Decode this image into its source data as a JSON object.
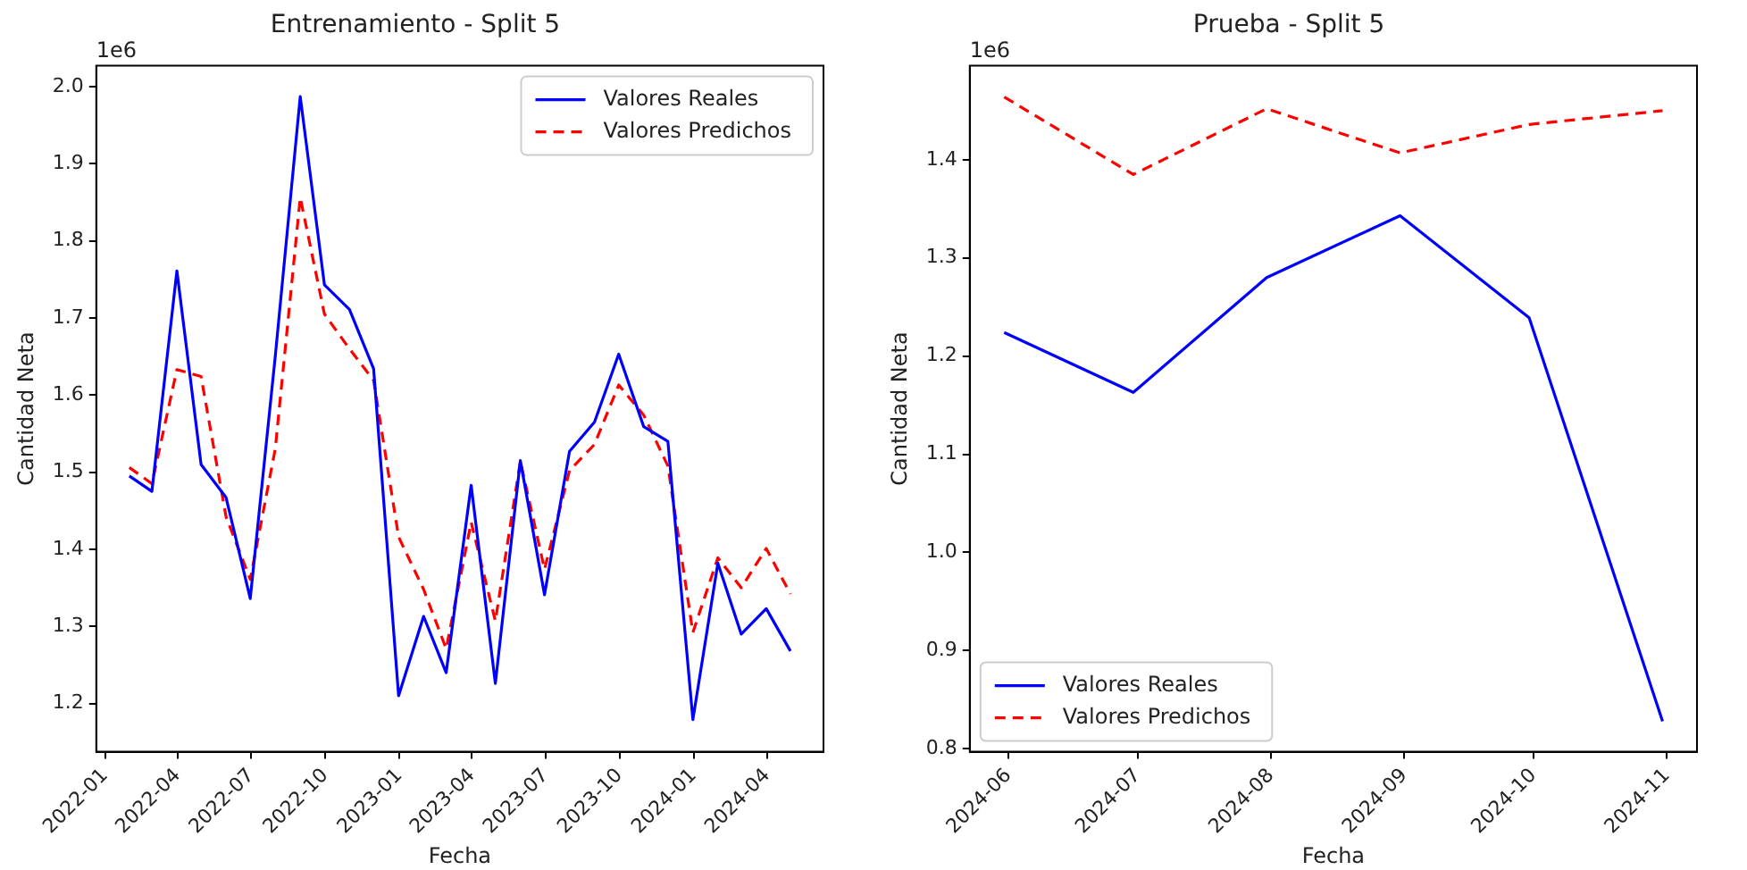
{
  "chart_data": [
    {
      "type": "line",
      "title": "Entrenamiento - Split 5",
      "xlabel": "Fecha",
      "ylabel": "Cantidad Neta",
      "annotations": [
        "1e6"
      ],
      "x": [
        "2022-01-31",
        "2022-02-28",
        "2022-03-31",
        "2022-04-30",
        "2022-05-31",
        "2022-06-30",
        "2022-07-31",
        "2022-08-31",
        "2022-09-30",
        "2022-10-31",
        "2022-11-30",
        "2022-12-31",
        "2023-01-31",
        "2023-02-28",
        "2023-03-31",
        "2023-04-30",
        "2023-05-31",
        "2023-06-30",
        "2023-07-31",
        "2023-08-31",
        "2023-09-30",
        "2023-10-31",
        "2023-11-30",
        "2023-12-31",
        "2024-01-31",
        "2024-02-29",
        "2024-03-31",
        "2024-04-30"
      ],
      "series": [
        {
          "name": "Valores Reales",
          "color": "#0000ff",
          "line_style": "solid",
          "values": [
            1.495,
            1.475,
            1.761,
            1.51,
            1.467,
            1.336,
            1.65,
            1.987,
            1.743,
            1.711,
            1.634,
            1.21,
            1.313,
            1.24,
            1.483,
            1.226,
            1.515,
            1.341,
            1.527,
            1.565,
            1.653,
            1.559,
            1.54,
            1.179,
            1.382,
            1.29,
            1.323,
            1.268
          ]
        },
        {
          "name": "Valores Predichos",
          "color": "#ff0000",
          "line_style": "dashed",
          "values": [
            1.506,
            1.485,
            1.633,
            1.624,
            1.442,
            1.361,
            1.53,
            1.856,
            1.705,
            1.66,
            1.619,
            1.416,
            1.348,
            1.271,
            1.435,
            1.307,
            1.514,
            1.374,
            1.502,
            1.536,
            1.613,
            1.574,
            1.508,
            1.292,
            1.389,
            1.35,
            1.401,
            1.342
          ]
        }
      ],
      "xlim": [
        "2021-12-21",
        "2024-06-10"
      ],
      "xticks": [
        "2022-01",
        "2022-04",
        "2022-07",
        "2022-10",
        "2023-01",
        "2023-04",
        "2023-07",
        "2023-10",
        "2024-01",
        "2024-04"
      ],
      "ylim": [
        1.1375,
        2.027
      ],
      "yticks": [
        1.2,
        1.3,
        1.4,
        1.5,
        1.6,
        1.7,
        1.8,
        1.9,
        {
          "value": 2,
          "label": "2.0"
        }
      ],
      "grid": false,
      "legend": "top right",
      "marker": "none"
    },
    {
      "type": "line",
      "title": "Prueba - Split 5",
      "xlabel": "Fecha",
      "ylabel": "Cantidad Neta",
      "annotations": [
        "1e6"
      ],
      "x": [
        "2024-05-31",
        "2024-06-30",
        "2024-07-31",
        "2024-08-31",
        "2024-09-30",
        "2024-10-31"
      ],
      "series": [
        {
          "name": "Valores Reales",
          "color": "#0000ff",
          "line_style": "solid",
          "values": [
            1.224,
            1.163,
            1.28,
            1.343,
            1.239,
            0.828
          ]
        },
        {
          "name": "Valores Predichos",
          "color": "#ff0000",
          "line_style": "dashed",
          "values": [
            1.464,
            1.385,
            1.452,
            1.407,
            1.436,
            1.45
          ]
        }
      ],
      "xlim": [
        "2024-05-23",
        "2024-11-08"
      ],
      "xticks": [
        "2024-06",
        "2024-07",
        "2024-08",
        "2024-09",
        "2024-10",
        "2024-11"
      ],
      "ylim": [
        0.797,
        1.4958
      ],
      "yticks": [
        0.8,
        0.9,
        {
          "value": 1,
          "label": "1.0"
        },
        1.1,
        1.2,
        1.3,
        1.4
      ],
      "grid": false,
      "legend": "bottom left",
      "marker": "none"
    }
  ]
}
